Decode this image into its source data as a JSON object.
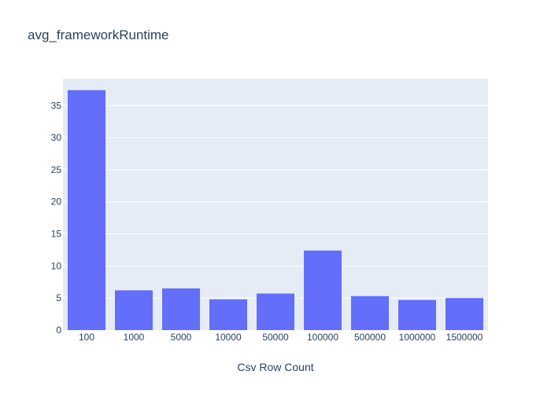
{
  "chart_data": {
    "type": "bar",
    "title": "avg_frameworkRuntime",
    "xlabel": "Csv Row Count",
    "ylabel": "",
    "categories": [
      "100",
      "1000",
      "5000",
      "10000",
      "50000",
      "100000",
      "500000",
      "1000000",
      "1500000"
    ],
    "values": [
      37.4,
      6.2,
      6.5,
      4.8,
      5.7,
      12.4,
      5.3,
      4.7,
      5.0
    ],
    "ylim": [
      0,
      39.2
    ],
    "yticks": [
      0,
      5,
      10,
      15,
      20,
      25,
      30,
      35
    ],
    "ytick_labels": [
      "0",
      "5",
      "10",
      "15",
      "20",
      "25",
      "30",
      "35"
    ],
    "grid": true,
    "colors": {
      "bar": "#636efa",
      "plot_bg": "#e5ecf6",
      "grid": "#ffffff",
      "text": "#2a3f5f"
    }
  }
}
